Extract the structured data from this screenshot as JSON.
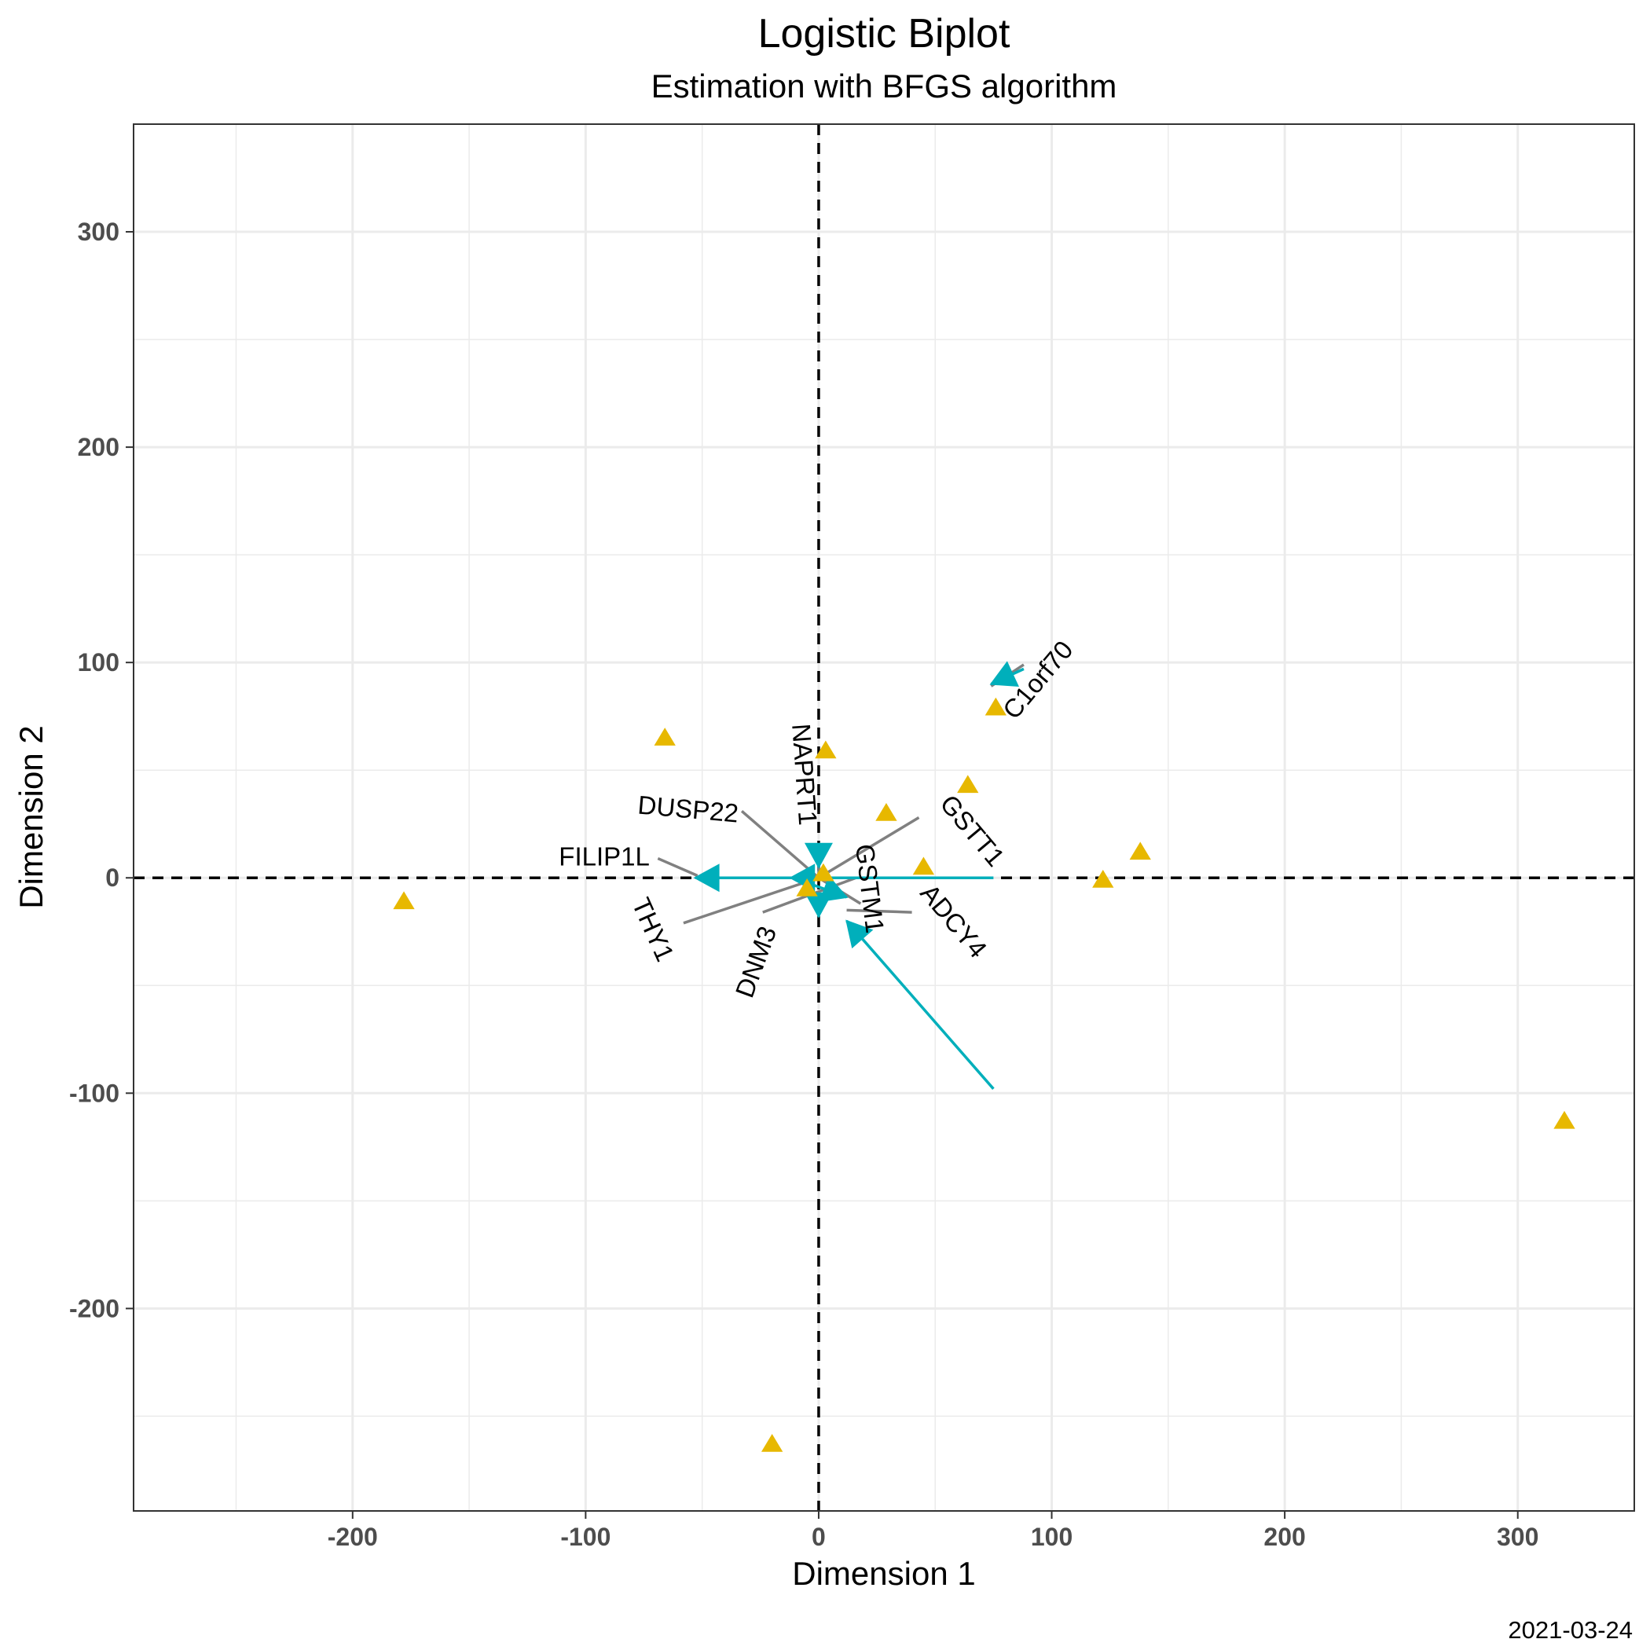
{
  "chart_data": {
    "type": "scatter",
    "title": "Logistic Biplot",
    "subtitle": "Estimation with BFGS algorithm",
    "xlabel": "Dimension 1",
    "ylabel": "Dimension 2",
    "caption": "2021-03-24",
    "xlim": [
      -294,
      350
    ],
    "ylim": [
      -294,
      350
    ],
    "x_ticks": [
      -200,
      -100,
      0,
      100,
      200,
      300
    ],
    "y_ticks": [
      -200,
      -100,
      0,
      100,
      200,
      300
    ],
    "x_tick_labels": [
      "-200",
      "-100",
      "0",
      "100",
      "200",
      "300"
    ],
    "y_tick_labels": [
      "-200",
      "-100",
      "0",
      "100",
      "200",
      "300"
    ],
    "grid": true,
    "reference_lines": {
      "x": 0,
      "y": 0,
      "style": "dashed"
    },
    "colors": {
      "points": "#E7B800",
      "arrows": "#00AFBB",
      "segments": "#808080",
      "grid": "#EBEBEB",
      "text": "#000000"
    },
    "points": [
      {
        "x": -178,
        "y": -11
      },
      {
        "x": -66,
        "y": 65
      },
      {
        "x": -20,
        "y": -263
      },
      {
        "x": 3,
        "y": 59
      },
      {
        "x": 29,
        "y": 30
      },
      {
        "x": 45,
        "y": 5
      },
      {
        "x": 64,
        "y": 43
      },
      {
        "x": 76,
        "y": 79
      },
      {
        "x": 122,
        "y": -1
      },
      {
        "x": 138,
        "y": 12
      },
      {
        "x": 320,
        "y": -113
      },
      {
        "x": -5,
        "y": -5
      },
      {
        "x": 2,
        "y": 2
      }
    ],
    "arrows": [
      {
        "x0": 75,
        "y0": 0,
        "x1": -53,
        "y1": 0
      },
      {
        "x0": 75,
        "y0": -98,
        "x1": 12,
        "y1": -20
      },
      {
        "x0": 88,
        "y0": 97,
        "x1": 74,
        "y1": 90
      },
      {
        "x0": 0,
        "y0": 14,
        "x1": 0,
        "y1": 5
      },
      {
        "x0": 10,
        "y0": 0,
        "x1": -12,
        "y1": 0
      },
      {
        "x0": 0,
        "y0": -8,
        "x1": 0,
        "y1": -18
      },
      {
        "x0": -3,
        "y0": -3,
        "x1": 12,
        "y1": -9
      }
    ],
    "variables": [
      {
        "label": "C1orf70",
        "lx": 94,
        "ly": 92,
        "angle": -50,
        "sx0": 88,
        "sy0": 99,
        "sx1": 74,
        "sy1": 89
      },
      {
        "label": "GSTT1",
        "lx": 66,
        "ly": 22,
        "angle": 50,
        "sx0": 43,
        "sy0": 28,
        "sx1": 0,
        "sy1": 0
      },
      {
        "label": "NAPRT1",
        "lx": -6,
        "ly": 48,
        "angle": 86,
        "sx0": 0,
        "sy0": 12,
        "sx1": 0,
        "sy1": 0
      },
      {
        "label": "DUSP22",
        "lx": -56,
        "ly": 32,
        "angle": 5,
        "sx0": -33,
        "sy0": 31,
        "sx1": 0,
        "sy1": 0
      },
      {
        "label": "FILIP1L",
        "lx": -92,
        "ly": 10,
        "angle": 0,
        "sx0": -69,
        "sy0": 9,
        "sx1": -52,
        "sy1": 1
      },
      {
        "label": "GSTM1",
        "lx": 22,
        "ly": -5,
        "angle": 83,
        "sx0": 18,
        "sy0": -12,
        "sx1": 0,
        "sy1": 0
      },
      {
        "label": "ADCY4",
        "lx": 58,
        "ly": -20,
        "angle": 50,
        "sx0": 40,
        "sy0": -16,
        "sx1": 12,
        "sy1": -15
      },
      {
        "label": "THY1",
        "lx": -71,
        "ly": -24,
        "angle": 66,
        "sx0": -58,
        "sy0": -21,
        "sx1": 0,
        "sy1": 0
      },
      {
        "label": "DNM3",
        "lx": -27,
        "ly": -39,
        "angle": -70,
        "sx0": -24,
        "sy0": -16,
        "sx1": 16,
        "sy1": 0
      }
    ]
  }
}
